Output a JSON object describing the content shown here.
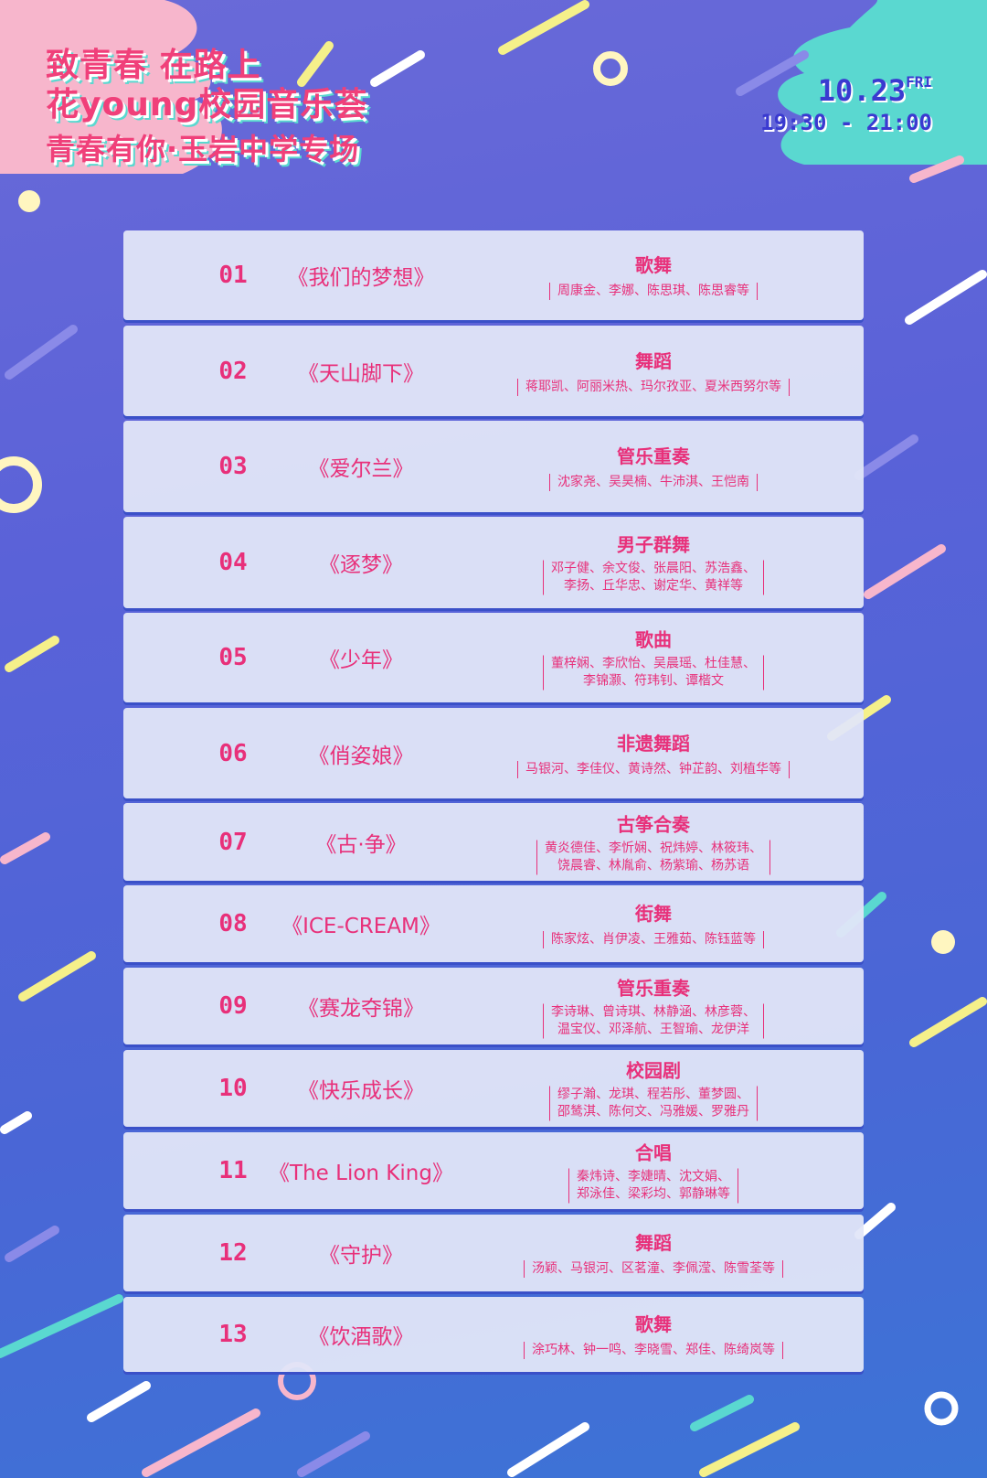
{
  "header": {
    "line1": "致青春  在路上",
    "line2": "花young校园音乐荟",
    "line3": "青春有你·玉岩中学专场",
    "date": "10.23",
    "weekday": "FRI",
    "time": "19:30 - 21:00"
  },
  "colors": {
    "accent": "#e8307a",
    "background": "#5a62d8",
    "card": "#e2e6f8",
    "pink": "#f7b6cc",
    "teal": "#5ad8d0"
  },
  "programs": [
    {
      "num": "01",
      "title": "《我们的梦想》",
      "genre": "歌舞",
      "cast": "周康金、李娜、陈思琪、陈思睿等"
    },
    {
      "num": "02",
      "title": "《天山脚下》",
      "genre": "舞蹈",
      "cast": "蒋耶凯、阿丽米热、玛尔孜亚、夏米西努尔等"
    },
    {
      "num": "03",
      "title": "《爱尔兰》",
      "genre": "管乐重奏",
      "cast": "沈家尧、吴昊楠、牛沛淇、王恺南"
    },
    {
      "num": "04",
      "title": "《逐梦》",
      "genre": "男子群舞",
      "cast": "邓子健、余文俊、张晨阳、苏浩鑫、\n李扬、丘华忠、谢定华、黄祥等"
    },
    {
      "num": "05",
      "title": "《少年》",
      "genre": "歌曲",
      "cast": "董梓娴、李欣怡、吴晨瑶、杜佳慧、\n李锦灏、符玮钊、谭楷文"
    },
    {
      "num": "06",
      "title": "《俏姿娘》",
      "genre": "非遗舞蹈",
      "cast": "马银河、李佳仪、黄诗然、钟芷韵、刘植华等"
    },
    {
      "num": "07",
      "title": "《古·争》",
      "genre": "古筝合奏",
      "cast": "黄炎德佳、李忻娴、祝炜婷、林筱玮、\n饶晨睿、林胤俞、杨紫瑜、杨苏语"
    },
    {
      "num": "08",
      "title": "《ICE-CREAM》",
      "genre": "街舞",
      "cast": "陈家炫、肖伊凌、王雅茹、陈钰蓝等"
    },
    {
      "num": "09",
      "title": "《赛龙夺锦》",
      "genre": "管乐重奏",
      "cast": "李诗琳、曾诗琪、林静涵、林彦蓉、\n温宝仪、邓泽航、王智瑜、龙伊洋"
    },
    {
      "num": "10",
      "title": "《快乐成长》",
      "genre": "校园剧",
      "cast": "缪子瀚、龙琪、程若彤、董梦圆、\n邵鸶淇、陈何文、冯雅媛、罗雅丹"
    },
    {
      "num": "11",
      "title": "《The Lion King》",
      "genre": "合唱",
      "cast": "秦炜诗、李婕晴、沈文娟、\n郑泳佳、梁彩均、郭静琳等"
    },
    {
      "num": "12",
      "title": "《守护》",
      "genre": "舞蹈",
      "cast": "汤颖、马银河、区茗潼、李佩滢、陈雪荃等"
    },
    {
      "num": "13",
      "title": "《饮酒歌》",
      "genre": "歌舞",
      "cast": "涂巧林、钟一鸣、李晓雪、郑佳、陈绮岚等"
    }
  ]
}
